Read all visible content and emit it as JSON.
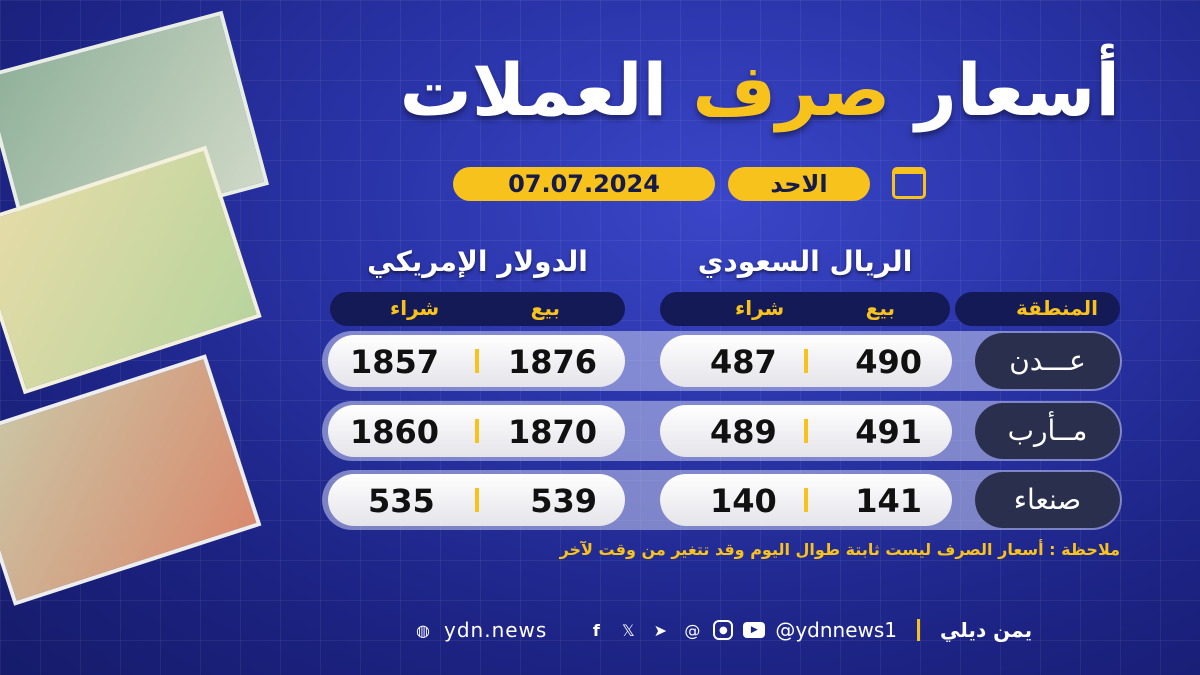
{
  "title": {
    "part1": "أسعار",
    "part2": "صرف",
    "part3": "العملات"
  },
  "date": {
    "day": "الاحد",
    "date": "07.07.2024",
    "icon": "calendar-icon"
  },
  "currencies": {
    "sar": "الريال السعودي",
    "usd": "الدولار الإمريكي"
  },
  "headers": {
    "region": "المنطقة",
    "sell": "بيع",
    "buy": "شراء"
  },
  "rows": [
    {
      "region": "عـــدن",
      "sar_sell": "490",
      "sar_buy": "487",
      "usd_sell": "1876",
      "usd_buy": "1857"
    },
    {
      "region": "مــأرب",
      "sar_sell": "491",
      "sar_buy": "489",
      "usd_sell": "1870",
      "usd_buy": "1860"
    },
    {
      "region": "صنعاء",
      "sar_sell": "141",
      "sar_buy": "140",
      "usd_sell": "539",
      "usd_buy": "535"
    }
  ],
  "note": "ملاحظة : أسعار الصرف ليست ثابتة طوال اليوم وقد تتغير من وقت لآخر",
  "footer": {
    "website": "ydn.news",
    "handle": "@ydnnews1",
    "logo": "يمن ديلي",
    "social": [
      "facebook",
      "x",
      "telegram",
      "threads",
      "instagram",
      "youtube"
    ]
  },
  "colors": {
    "accent": "#f7c21c",
    "background": "#2a34a8"
  }
}
